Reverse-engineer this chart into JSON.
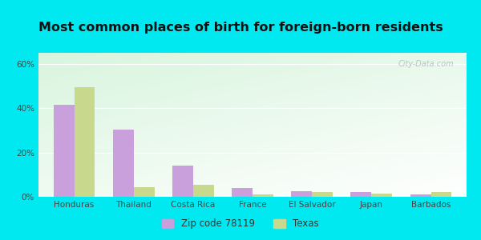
{
  "title": "Most common places of birth for foreign-born residents",
  "categories": [
    "Honduras",
    "Thailand",
    "Costa Rica",
    "France",
    "El Salvador",
    "Japan",
    "Barbados"
  ],
  "zip_values": [
    41.5,
    30.5,
    14.0,
    4.0,
    2.5,
    2.0,
    1.0
  ],
  "texas_values": [
    49.5,
    4.5,
    5.5,
    1.0,
    2.0,
    1.5,
    2.0
  ],
  "zip_color": "#c9a0dc",
  "texas_color": "#c8d98e",
  "background_outer": "#00e8f0",
  "ylim": [
    0,
    65
  ],
  "yticks": [
    0,
    20,
    40,
    60
  ],
  "ytick_labels": [
    "0%",
    "20%",
    "40%",
    "60%"
  ],
  "legend_zip_label": "Zip code 78119",
  "legend_texas_label": "Texas",
  "watermark": "City-Data.com",
  "title_fontsize": 11.5,
  "tick_fontsize": 7.5,
  "legend_fontsize": 8.5
}
